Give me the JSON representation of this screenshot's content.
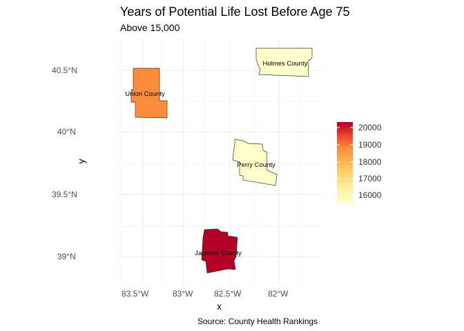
{
  "title": "Years of Potential Life Lost Before Age 75",
  "subtitle": "Above 15,000",
  "caption": "Source: County Health Rankings",
  "x_axis": {
    "title": "x",
    "ticks": [
      "83.5°W",
      "83°W",
      "82.5°W",
      "82°W"
    ]
  },
  "y_axis": {
    "title": "y",
    "ticks": [
      "40.5°N",
      "40°N",
      "39.5°N",
      "39°N"
    ]
  },
  "legend": {
    "ticks": [
      "20000",
      "19000",
      "18000",
      "17000",
      "16000"
    ],
    "min": 15500,
    "max": 20200,
    "colors": [
      "#b30026",
      "#e31a1c",
      "#fc4e2a",
      "#fd8d3c",
      "#feb24c",
      "#fed976",
      "#ffffcc"
    ]
  },
  "chart_data": {
    "type": "choropleth",
    "xlim": [
      -83.62,
      -81.72
    ],
    "ylim": [
      38.73,
      40.72
    ],
    "grid": true,
    "legend_position": "right",
    "fill_scale": "YlOrRd",
    "counties": [
      {
        "name": "Holmes County",
        "value": 15600
      },
      {
        "name": "Union County",
        "value": 17900
      },
      {
        "name": "Perry County",
        "value": 15800
      },
      {
        "name": "Jackson County",
        "value": 20150
      }
    ]
  }
}
